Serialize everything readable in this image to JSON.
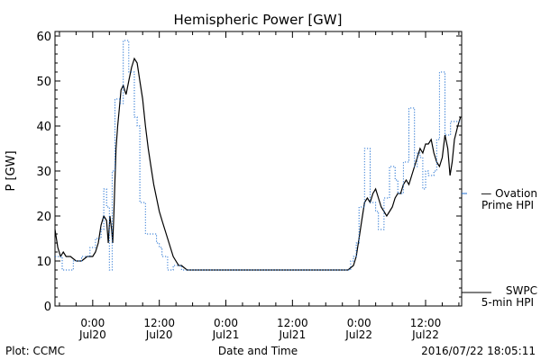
{
  "chart_data": {
    "type": "line",
    "title": "Hemispheric Power [GW]",
    "xlabel": "Date and Time",
    "ylabel": "P [GW]",
    "ylim": [
      0,
      61
    ],
    "yticks": [
      0,
      10,
      20,
      30,
      40,
      50,
      60
    ],
    "x_unit": "hours since 2016-07-20 00:00",
    "xlim": [
      -6.8,
      66.5
    ],
    "xticks": [
      {
        "x": 0,
        "time": "0:00",
        "date": "Jul20"
      },
      {
        "x": 12,
        "time": "12:00",
        "date": "Jul20"
      },
      {
        "x": 24,
        "time": "0:00",
        "date": "Jul21"
      },
      {
        "x": 36,
        "time": "12:00",
        "date": "Jul21"
      },
      {
        "x": 48,
        "time": "0:00",
        "date": "Jul22"
      },
      {
        "x": 60,
        "time": "12:00",
        "date": "Jul22"
      }
    ],
    "grid": false,
    "series": [
      {
        "name": "SWPC 5-min HPI",
        "color": "#000000",
        "style": "solid",
        "points": [
          [
            -6.8,
            17
          ],
          [
            -6.3,
            13
          ],
          [
            -5.8,
            11
          ],
          [
            -5.3,
            12
          ],
          [
            -4.8,
            11
          ],
          [
            -4,
            11
          ],
          [
            -3,
            10
          ],
          [
            -2,
            10
          ],
          [
            -1,
            11
          ],
          [
            0,
            11
          ],
          [
            0.5,
            12
          ],
          [
            1,
            14
          ],
          [
            1.5,
            18
          ],
          [
            2,
            20
          ],
          [
            2.5,
            19
          ],
          [
            2.8,
            14
          ],
          [
            3.1,
            20
          ],
          [
            3.4,
            17
          ],
          [
            3.6,
            14
          ],
          [
            3.8,
            20
          ],
          [
            4,
            28
          ],
          [
            4.2,
            35
          ],
          [
            4.5,
            40
          ],
          [
            4.8,
            44
          ],
          [
            5.1,
            48
          ],
          [
            5.5,
            49
          ],
          [
            6,
            47
          ],
          [
            6.5,
            50
          ],
          [
            7,
            53
          ],
          [
            7.5,
            55
          ],
          [
            8,
            54
          ],
          [
            8.5,
            50
          ],
          [
            9,
            46
          ],
          [
            9.5,
            40
          ],
          [
            10,
            35
          ],
          [
            10.5,
            31
          ],
          [
            11,
            27
          ],
          [
            11.5,
            24
          ],
          [
            12,
            21
          ],
          [
            12.5,
            19
          ],
          [
            13,
            17
          ],
          [
            13.5,
            15
          ],
          [
            14,
            13
          ],
          [
            14.5,
            11
          ],
          [
            15,
            10
          ],
          [
            15.5,
            9
          ],
          [
            16,
            9
          ],
          [
            17,
            8
          ],
          [
            20,
            8
          ],
          [
            30,
            8
          ],
          [
            40,
            8
          ],
          [
            45,
            8
          ],
          [
            46,
            8
          ],
          [
            47,
            9
          ],
          [
            47.5,
            11
          ],
          [
            48,
            15
          ],
          [
            48.5,
            19
          ],
          [
            49,
            23
          ],
          [
            49.5,
            24
          ],
          [
            50,
            23
          ],
          [
            50.5,
            25
          ],
          [
            51,
            26
          ],
          [
            51.5,
            24
          ],
          [
            52,
            22
          ],
          [
            52.5,
            21
          ],
          [
            53,
            20
          ],
          [
            53.5,
            21
          ],
          [
            54,
            22
          ],
          [
            54.5,
            24
          ],
          [
            55,
            25
          ],
          [
            55.5,
            25
          ],
          [
            56,
            27
          ],
          [
            56.5,
            28
          ],
          [
            57,
            27
          ],
          [
            57.5,
            29
          ],
          [
            58,
            31
          ],
          [
            58.5,
            33
          ],
          [
            59,
            35
          ],
          [
            59.5,
            34
          ],
          [
            60,
            36
          ],
          [
            60.5,
            36
          ],
          [
            61,
            37
          ],
          [
            61.5,
            34
          ],
          [
            62,
            32
          ],
          [
            62.5,
            31
          ],
          [
            63,
            33
          ],
          [
            63.5,
            38
          ],
          [
            64,
            35
          ],
          [
            64.4,
            29
          ],
          [
            64.8,
            32
          ],
          [
            65.2,
            37
          ],
          [
            65.8,
            40
          ],
          [
            66.3,
            42
          ]
        ]
      },
      {
        "name": "Ovation Prime HPI",
        "color": "#1f6fd1",
        "style": "dotted-step",
        "points": [
          [
            -6.8,
            11
          ],
          [
            -5.5,
            8
          ],
          [
            -3.5,
            10
          ],
          [
            -2,
            11
          ],
          [
            -0.5,
            13
          ],
          [
            0.5,
            15
          ],
          [
            1.5,
            17
          ],
          [
            2,
            26
          ],
          [
            2.5,
            22
          ],
          [
            3,
            8
          ],
          [
            3.5,
            30
          ],
          [
            4,
            46
          ],
          [
            5,
            45
          ],
          [
            5.5,
            59
          ],
          [
            6.5,
            52
          ],
          [
            7.5,
            42
          ],
          [
            8,
            40
          ],
          [
            8.5,
            23
          ],
          [
            9.5,
            16
          ],
          [
            11.5,
            14
          ],
          [
            12,
            13
          ],
          [
            12.5,
            11
          ],
          [
            13.5,
            8
          ],
          [
            14.5,
            9
          ],
          [
            16,
            8
          ],
          [
            46,
            8
          ],
          [
            46.5,
            10
          ],
          [
            47,
            11
          ],
          [
            47.5,
            14
          ],
          [
            48,
            22
          ],
          [
            49,
            35
          ],
          [
            50,
            23
          ],
          [
            51,
            21
          ],
          [
            51.5,
            17
          ],
          [
            52.5,
            24
          ],
          [
            53.5,
            31
          ],
          [
            54.5,
            28
          ],
          [
            55,
            25
          ],
          [
            56,
            32
          ],
          [
            57,
            44
          ],
          [
            58,
            31
          ],
          [
            58.5,
            34
          ],
          [
            59,
            33
          ],
          [
            59.5,
            26
          ],
          [
            60,
            30
          ],
          [
            60.5,
            29
          ],
          [
            61.5,
            30
          ],
          [
            62,
            37
          ],
          [
            62.5,
            52
          ],
          [
            63.5,
            38
          ],
          [
            64.5,
            41
          ],
          [
            66.5,
            41
          ]
        ]
      }
    ],
    "legend": [
      {
        "line1": "— Ovation",
        "line2": "Prime HPI",
        "color": "#1f6fd1",
        "value": 25
      },
      {
        "line1": "SWPC",
        "line2": "5-min HPI",
        "color": "#000000",
        "value": 3
      }
    ]
  },
  "footer": {
    "left": "Plot: CCMC",
    "right": "2016/07/22 18:05:11"
  }
}
